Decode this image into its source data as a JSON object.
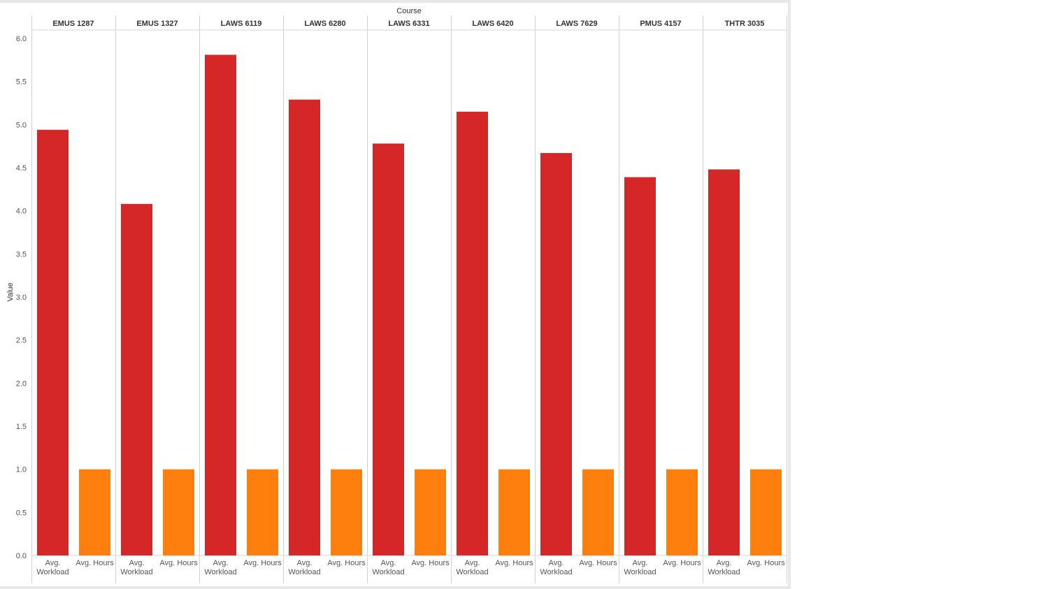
{
  "chart_data": {
    "type": "bar",
    "title": "Course",
    "ylabel": "Value",
    "ylim": [
      0,
      6.0
    ],
    "yticks": [
      "0.0",
      "0.5",
      "1.0",
      "1.5",
      "2.0",
      "2.5",
      "3.0",
      "3.5",
      "4.0",
      "4.5",
      "5.0",
      "5.5",
      "6.0"
    ],
    "grid": false,
    "categories": [
      "EMUS 1287",
      "EMUS 1327",
      "LAWS 6119",
      "LAWS 6280",
      "LAWS 6331",
      "LAWS 6420",
      "LAWS 7629",
      "PMUS 4157",
      "THTR 3035"
    ],
    "series": [
      {
        "name": "Avg. Workload",
        "color": "#d62728",
        "label_lines": [
          "Avg.",
          "Workload"
        ],
        "values": [
          4.94,
          4.08,
          5.81,
          5.29,
          4.78,
          5.15,
          4.67,
          4.39,
          4.48
        ]
      },
      {
        "name": "Avg. Hours",
        "color": "#ff7f0e",
        "label_lines": [
          "Avg. Hours"
        ],
        "values": [
          1.0,
          1.0,
          1.0,
          1.0,
          1.0,
          1.0,
          1.0,
          1.0,
          1.0
        ]
      }
    ]
  }
}
